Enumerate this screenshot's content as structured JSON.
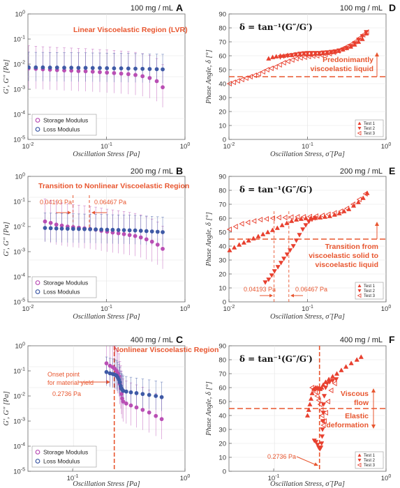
{
  "colors": {
    "storage": "#b94fb4",
    "loss": "#3f5aa6",
    "phase": "#e8402f",
    "annotation": "#e8562f"
  },
  "labels": {
    "x_modulus": "Oscillation Stress [Pa]",
    "x_phase": "Oscillation Stress, σ̃ [Pa]",
    "y_modulus": "G′, G″ [Pa]",
    "y_phase": "Phase Angle, δ [°]",
    "phase_eq": "δ = tan⁻¹(G″/G′)",
    "legend_storage": "Storage Modulus",
    "legend_loss": "Loss Modulus",
    "legend_test1": "Test 1",
    "legend_test2": "Test 2",
    "legend_test3": "Test 3"
  },
  "panels": [
    {
      "letter": "A",
      "concentration": "100 mg / mL"
    },
    {
      "letter": "B",
      "concentration": "200 mg / mL"
    },
    {
      "letter": "C",
      "concentration": "400 mg / mL"
    },
    {
      "letter": "D",
      "concentration": "100 mg / mL"
    },
    {
      "letter": "E",
      "concentration": "200 mg / mL"
    },
    {
      "letter": "F",
      "concentration": "400 mg / mL"
    }
  ],
  "annotations": {
    "A_region": "Linear Viscoelastic Region (LVR)",
    "B_region": "Transition to Nonlinear Viscoelastic Region",
    "B_low": "0.04193 Pa",
    "B_high": "0.06467 Pa",
    "C_region": "Nonlinear Viscoelastic Region",
    "C_onset_1": "Onset point",
    "C_onset_2": "for material yield",
    "C_onset_3": "0.2736 Pa",
    "D_note_1": "Predonimantly",
    "D_note_2": "viscoelastic liquid",
    "E_note_1": "Transition from",
    "E_note_2": "viscoelastic solid to",
    "E_note_3": "viscoelastic liquid",
    "E_low": "0.04193 Pa",
    "E_high": "0.06467 Pa",
    "F_note_1": "Viscous",
    "F_note_2": "flow",
    "F_note_3": "Elastic",
    "F_note_4": "deformation",
    "F_yield": "0.2736 Pa"
  },
  "chart_data": [
    {
      "panel": "A",
      "type": "scatter",
      "xscale": "log",
      "yscale": "log",
      "xlim": [
        0.01,
        1
      ],
      "ylim": [
        1e-05,
        1
      ],
      "xticks": [
        "10^-2",
        "10^-1",
        "10^0"
      ],
      "yticks": [
        "10^-5",
        "10^-4",
        "10^-3",
        "10^-2",
        "10^-1",
        "10^0"
      ],
      "xlabel": "Oscillation Stress [Pa]",
      "ylabel": "G′, G″ [Pa]",
      "series": [
        {
          "name": "Storage Modulus",
          "x": [
            0.0102,
            0.0126,
            0.0155,
            0.0191,
            0.0235,
            0.029,
            0.0357,
            0.044,
            0.0542,
            0.0668,
            0.0823,
            0.1014,
            0.125,
            0.154,
            0.19,
            0.234,
            0.288,
            0.355,
            0.437,
            0.52
          ],
          "y": [
            0.0068,
            0.0065,
            0.0062,
            0.006,
            0.0058,
            0.0056,
            0.0055,
            0.0053,
            0.0052,
            0.005,
            0.0048,
            0.0046,
            0.0044,
            0.0042,
            0.004,
            0.0037,
            0.0033,
            0.0028,
            0.0021,
            0.0012
          ]
        },
        {
          "name": "Loss Modulus",
          "x": [
            0.0102,
            0.0126,
            0.0155,
            0.0191,
            0.0235,
            0.029,
            0.0357,
            0.044,
            0.0542,
            0.0668,
            0.0823,
            0.1014,
            0.125,
            0.154,
            0.19,
            0.234,
            0.288,
            0.355,
            0.437,
            0.52
          ],
          "y": [
            0.0075,
            0.0074,
            0.0074,
            0.0073,
            0.0073,
            0.0072,
            0.0072,
            0.0071,
            0.0071,
            0.007,
            0.007,
            0.0069,
            0.0068,
            0.0068,
            0.0067,
            0.0066,
            0.0065,
            0.0064,
            0.0063,
            0.0062
          ]
        }
      ]
    },
    {
      "panel": "B",
      "type": "scatter",
      "xscale": "log",
      "yscale": "log",
      "xlim": [
        0.01,
        1
      ],
      "ylim": [
        1e-05,
        1
      ],
      "xticks": [
        "10^-2",
        "10^-1",
        "10^0"
      ],
      "yticks": [
        "10^-5",
        "10^-4",
        "10^-3",
        "10^-2",
        "10^-1",
        "10^0"
      ],
      "xlabel": "Oscillation Stress [Pa]",
      "ylabel": "G′, G″ [Pa]",
      "series": [
        {
          "name": "Storage Modulus",
          "x": [
            0.0165,
            0.0195,
            0.023,
            0.027,
            0.032,
            0.0377,
            0.0445,
            0.0525,
            0.062,
            0.073,
            0.086,
            0.102,
            0.12,
            0.142,
            0.167,
            0.197,
            0.232,
            0.274,
            0.323,
            0.38,
            0.448,
            0.52
          ],
          "y": [
            0.016,
            0.014,
            0.012,
            0.011,
            0.01,
            0.0095,
            0.009,
            0.0085,
            0.008,
            0.0075,
            0.0068,
            0.0062,
            0.0058,
            0.0054,
            0.005,
            0.0046,
            0.0042,
            0.0037,
            0.0031,
            0.0025,
            0.0019,
            0.0013
          ]
        },
        {
          "name": "Loss Modulus",
          "x": [
            0.0165,
            0.0195,
            0.023,
            0.027,
            0.032,
            0.0377,
            0.0445,
            0.0525,
            0.062,
            0.073,
            0.086,
            0.102,
            0.12,
            0.142,
            0.167,
            0.197,
            0.232,
            0.274,
            0.323,
            0.38,
            0.448,
            0.52
          ],
          "y": [
            0.0088,
            0.0086,
            0.0084,
            0.0083,
            0.0082,
            0.0081,
            0.008,
            0.0079,
            0.0078,
            0.0077,
            0.0076,
            0.0075,
            0.0074,
            0.0073,
            0.0072,
            0.0071,
            0.007,
            0.0068,
            0.0066,
            0.0064,
            0.0062,
            0.006
          ]
        }
      ]
    },
    {
      "panel": "C",
      "type": "scatter",
      "xscale": "log",
      "yscale": "log",
      "xlim": [
        0.04,
        1
      ],
      "ylim": [
        1e-05,
        1
      ],
      "xticks": [
        "10^-1",
        "10^0"
      ],
      "yticks": [
        "10^-5",
        "10^-4",
        "10^-3",
        "10^-2",
        "10^-1",
        "10^0"
      ],
      "xlabel": "Oscillation Stress [Pa]",
      "ylabel": "G′, G″ [Pa]",
      "series": [
        {
          "name": "Storage Modulus",
          "x": [
            0.2,
            0.215,
            0.228,
            0.238,
            0.246,
            0.252,
            0.258,
            0.263,
            0.268,
            0.272,
            0.276,
            0.282,
            0.3,
            0.33,
            0.37,
            0.42,
            0.48,
            0.55,
            0.62
          ],
          "y": [
            0.2,
            0.16,
            0.14,
            0.12,
            0.1,
            0.08,
            0.06,
            0.03,
            0.02,
            0.012,
            0.008,
            0.006,
            0.005,
            0.0042,
            0.0035,
            0.0028,
            0.0022,
            0.0016,
            0.0012
          ]
        },
        {
          "name": "Loss Modulus",
          "x": [
            0.2,
            0.215,
            0.228,
            0.238,
            0.246,
            0.252,
            0.258,
            0.263,
            0.268,
            0.272,
            0.276,
            0.282,
            0.3,
            0.33,
            0.37,
            0.42,
            0.48,
            0.55,
            0.62
          ],
          "y": [
            0.09,
            0.08,
            0.075,
            0.07,
            0.065,
            0.055,
            0.045,
            0.035,
            0.025,
            0.02,
            0.018,
            0.016,
            0.015,
            0.014,
            0.013,
            0.012,
            0.011,
            0.01,
            0.009
          ]
        }
      ]
    },
    {
      "panel": "D",
      "type": "scatter",
      "xscale": "log",
      "xlim": [
        0.01,
        1
      ],
      "ylim": [
        0,
        90
      ],
      "xticks": [
        "10^-2",
        "10^-1",
        "10^0"
      ],
      "yticks": [
        "0",
        "10",
        "20",
        "30",
        "40",
        "50",
        "60",
        "70",
        "80",
        "90"
      ],
      "xlabel": "Oscillation Stress, σ̃ [Pa]",
      "ylabel": "Phase Angle, δ [°]",
      "series": [
        {
          "name": "Test 1",
          "x": [
            0.032,
            0.036,
            0.04,
            0.045,
            0.05,
            0.056,
            0.063,
            0.071,
            0.08,
            0.09,
            0.1,
            0.112,
            0.126,
            0.141,
            0.158,
            0.178,
            0.2,
            0.224,
            0.251,
            0.282,
            0.316,
            0.355,
            0.398,
            0.447,
            0.5,
            0.56
          ],
          "y": [
            58,
            59,
            59.5,
            60,
            60,
            60.5,
            60.5,
            61,
            61,
            61.5,
            61,
            61,
            61.5,
            61.5,
            61.8,
            62,
            62.5,
            63,
            63.5,
            64.5,
            65.5,
            66.5,
            68,
            70,
            72,
            76
          ]
        },
        {
          "name": "Test 2",
          "x": [
            0.045,
            0.05,
            0.056,
            0.063,
            0.071,
            0.08,
            0.09,
            0.1,
            0.112,
            0.126,
            0.141,
            0.158,
            0.178,
            0.2,
            0.224,
            0.251,
            0.282,
            0.316,
            0.355,
            0.398,
            0.447,
            0.5,
            0.56
          ],
          "y": [
            59,
            59.5,
            60,
            60.5,
            61,
            61.5,
            61.8,
            62,
            62,
            62,
            62,
            62.3,
            62.5,
            62.8,
            63.2,
            63.8,
            64.5,
            65.5,
            67,
            69,
            71.5,
            74,
            77
          ]
        },
        {
          "name": "Test 3",
          "x": [
            0.0102,
            0.0115,
            0.013,
            0.0147,
            0.0166,
            0.0188,
            0.0213,
            0.024,
            0.0272,
            0.0307,
            0.0347,
            0.0392,
            0.0443,
            0.05,
            0.0566,
            0.064,
            0.0723,
            0.0817,
            0.0924,
            0.104,
            0.118,
            0.133,
            0.151,
            0.17,
            0.192,
            0.217,
            0.246,
            0.278,
            0.314,
            0.355,
            0.401,
            0.453,
            0.512,
            0.57
          ],
          "y": [
            40,
            41,
            42,
            43,
            44,
            45,
            46,
            47,
            48.5,
            50,
            51,
            52,
            53.5,
            55,
            56,
            57,
            58,
            58.5,
            59,
            59.5,
            59.8,
            60,
            60.5,
            61,
            61.5,
            62.5,
            63.5,
            65,
            66.5,
            68,
            70,
            72.5,
            75,
            77
          ]
        }
      ]
    },
    {
      "panel": "E",
      "type": "scatter",
      "xscale": "log",
      "xlim": [
        0.01,
        1
      ],
      "ylim": [
        0,
        90
      ],
      "xticks": [
        "10^-2",
        "10^-1",
        "10^0"
      ],
      "yticks": [
        "0",
        "10",
        "20",
        "30",
        "40",
        "50",
        "60",
        "70",
        "80",
        "90"
      ],
      "xlabel": "Oscillation Stress, σ̃ [Pa]",
      "ylabel": "Phase Angle, δ [°]",
      "series": [
        {
          "name": "Test 1",
          "x": [
            0.0102,
            0.0117,
            0.0135,
            0.0155,
            0.0178,
            0.0205,
            0.0236,
            0.0271,
            0.0312,
            0.0359,
            0.0413,
            0.0475,
            0.0546,
            0.0628,
            0.0722,
            0.083,
            0.0955,
            0.11,
            0.126,
            0.145,
            0.167,
            0.192,
            0.221,
            0.254,
            0.292,
            0.336,
            0.386,
            0.444,
            0.511,
            0.575
          ],
          "y": [
            37,
            39,
            41,
            42.5,
            44,
            45.5,
            47,
            48.5,
            50,
            51.5,
            53,
            55,
            56.5,
            58,
            59,
            59.5,
            60,
            60,
            60.2,
            60.5,
            61,
            61.5,
            62.5,
            63.5,
            65,
            66.5,
            69,
            71.5,
            74.5,
            78
          ]
        },
        {
          "name": "Test 2",
          "x": [
            0.029,
            0.032,
            0.035,
            0.038,
            0.042,
            0.046,
            0.05,
            0.055,
            0.06,
            0.066,
            0.072,
            0.079,
            0.087,
            0.095,
            0.104,
            0.114,
            0.125
          ],
          "y": [
            14,
            16,
            19,
            22,
            25,
            28,
            31,
            34,
            37,
            40,
            44,
            48,
            52,
            55,
            57.5,
            59,
            60
          ]
        },
        {
          "name": "Test 3",
          "x": [
            0.0102,
            0.0122,
            0.0146,
            0.0175,
            0.021,
            0.0252,
            0.0302,
            0.0362,
            0.0434,
            0.052,
            0.0624,
            0.0748,
            0.0897,
            0.1075,
            0.129,
            0.155,
            0.185,
            0.222,
            0.266,
            0.319,
            0.382,
            0.458,
            0.549
          ],
          "y": [
            52,
            54,
            56,
            57,
            58,
            59,
            59.5,
            60,
            60.5,
            60.5,
            60.8,
            61,
            61,
            61.2,
            61.5,
            62,
            62.8,
            63.8,
            65,
            67,
            70,
            73.5,
            77.5
          ]
        }
      ]
    },
    {
      "panel": "F",
      "type": "scatter",
      "xscale": "log",
      "xlim": [
        0.04,
        1
      ],
      "ylim": [
        0,
        90
      ],
      "xticks": [
        "10^-1",
        "10^0"
      ],
      "yticks": [
        "0",
        "10",
        "20",
        "30",
        "40",
        "50",
        "60",
        "70",
        "80",
        "90"
      ],
      "xlabel": "Oscillation Stress, σ̃ [Pa]",
      "ylabel": "Phase Angle, δ [°]",
      "series": [
        {
          "name": "Test 1",
          "x": [
            0.2,
            0.205,
            0.21,
            0.215,
            0.22,
            0.228,
            0.236,
            0.244,
            0.252,
            0.26,
            0.268,
            0.276,
            0.29,
            0.31,
            0.335,
            0.365,
            0.4,
            0.44,
            0.49,
            0.55,
            0.6
          ],
          "y": [
            40,
            44,
            48,
            52,
            56,
            59,
            60,
            60,
            59.5,
            59,
            60,
            62,
            64,
            66,
            68,
            70,
            72.5,
            75,
            77.5,
            80,
            82
          ]
        },
        {
          "name": "Test 2",
          "x": [
            0.23,
            0.238,
            0.246,
            0.252,
            0.258,
            0.263,
            0.267,
            0.27,
            0.272,
            0.274,
            0.276,
            0.278,
            0.282,
            0.29,
            0.3,
            0.315,
            0.335,
            0.36
          ],
          "y": [
            22,
            21,
            19,
            17,
            16,
            17,
            20,
            25,
            30,
            36,
            42,
            48,
            54,
            60,
            63,
            64,
            65,
            66
          ]
        },
        {
          "name": "Test 3",
          "x": [
            0.22,
            0.228,
            0.236,
            0.244,
            0.252,
            0.26,
            0.266,
            0.27,
            0.274,
            0.278,
            0.284,
            0.292,
            0.305,
            0.325,
            0.35
          ],
          "y": [
            60,
            59,
            57,
            54,
            51,
            48,
            44,
            40,
            36,
            33,
            36,
            42,
            50,
            58,
            63
          ]
        }
      ]
    }
  ]
}
